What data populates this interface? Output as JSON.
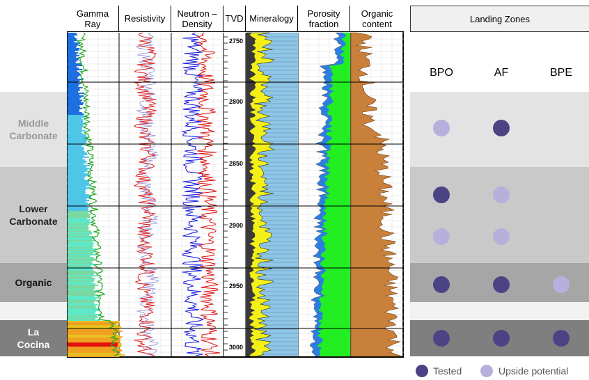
{
  "tracks": [
    {
      "label": "Gamma\nRay"
    },
    {
      "label": "Resistivity"
    },
    {
      "label": "Neutron –\nDensity"
    },
    {
      "label": "TVD"
    },
    {
      "label": "Mineralogy"
    },
    {
      "label": "Porosity\nfraction"
    },
    {
      "label": "Organic\ncontent"
    }
  ],
  "depth_ticks": [
    "2750",
    "2800",
    "2850",
    "2900",
    "2950",
    "3000"
  ],
  "zones": [
    {
      "name": "Middle\nCarbonate",
      "color": "#e3e3e3",
      "label_color": "#999999"
    },
    {
      "name": "Lower\nCarbonate",
      "color": "#c9c9c9",
      "label_color": "#222222"
    },
    {
      "name": "Organic",
      "color": "#a6a6a6",
      "label_color": "#111111"
    },
    {
      "name": "La\nCocina",
      "color": "#7f7f7f",
      "label_color": "#ffffff"
    }
  ],
  "landing_zones": {
    "title": "Landing Zones",
    "columns": [
      "BPO",
      "AF",
      "BPE"
    ],
    "rows": [
      [
        "upside",
        "tested",
        ""
      ],
      [
        "tested",
        "upside",
        ""
      ],
      [
        "upside",
        "upside",
        ""
      ],
      [
        "tested",
        "tested",
        "upside"
      ],
      [
        "tested",
        "tested",
        "tested"
      ]
    ]
  },
  "legend": {
    "tested": "Tested",
    "upside": "Upside potential"
  },
  "colors": {
    "tested": "#4b4384",
    "upside": "#b7b0dc",
    "gamma": "#22a822",
    "resistivity": "#e02020",
    "neutron": "#1010dd",
    "density": "#e01010",
    "mineral_yellow": "#f3ef17",
    "mineral_blue": "#8fc6e6",
    "porosity_green": "#22ee22",
    "organic": "#c9803a"
  }
}
